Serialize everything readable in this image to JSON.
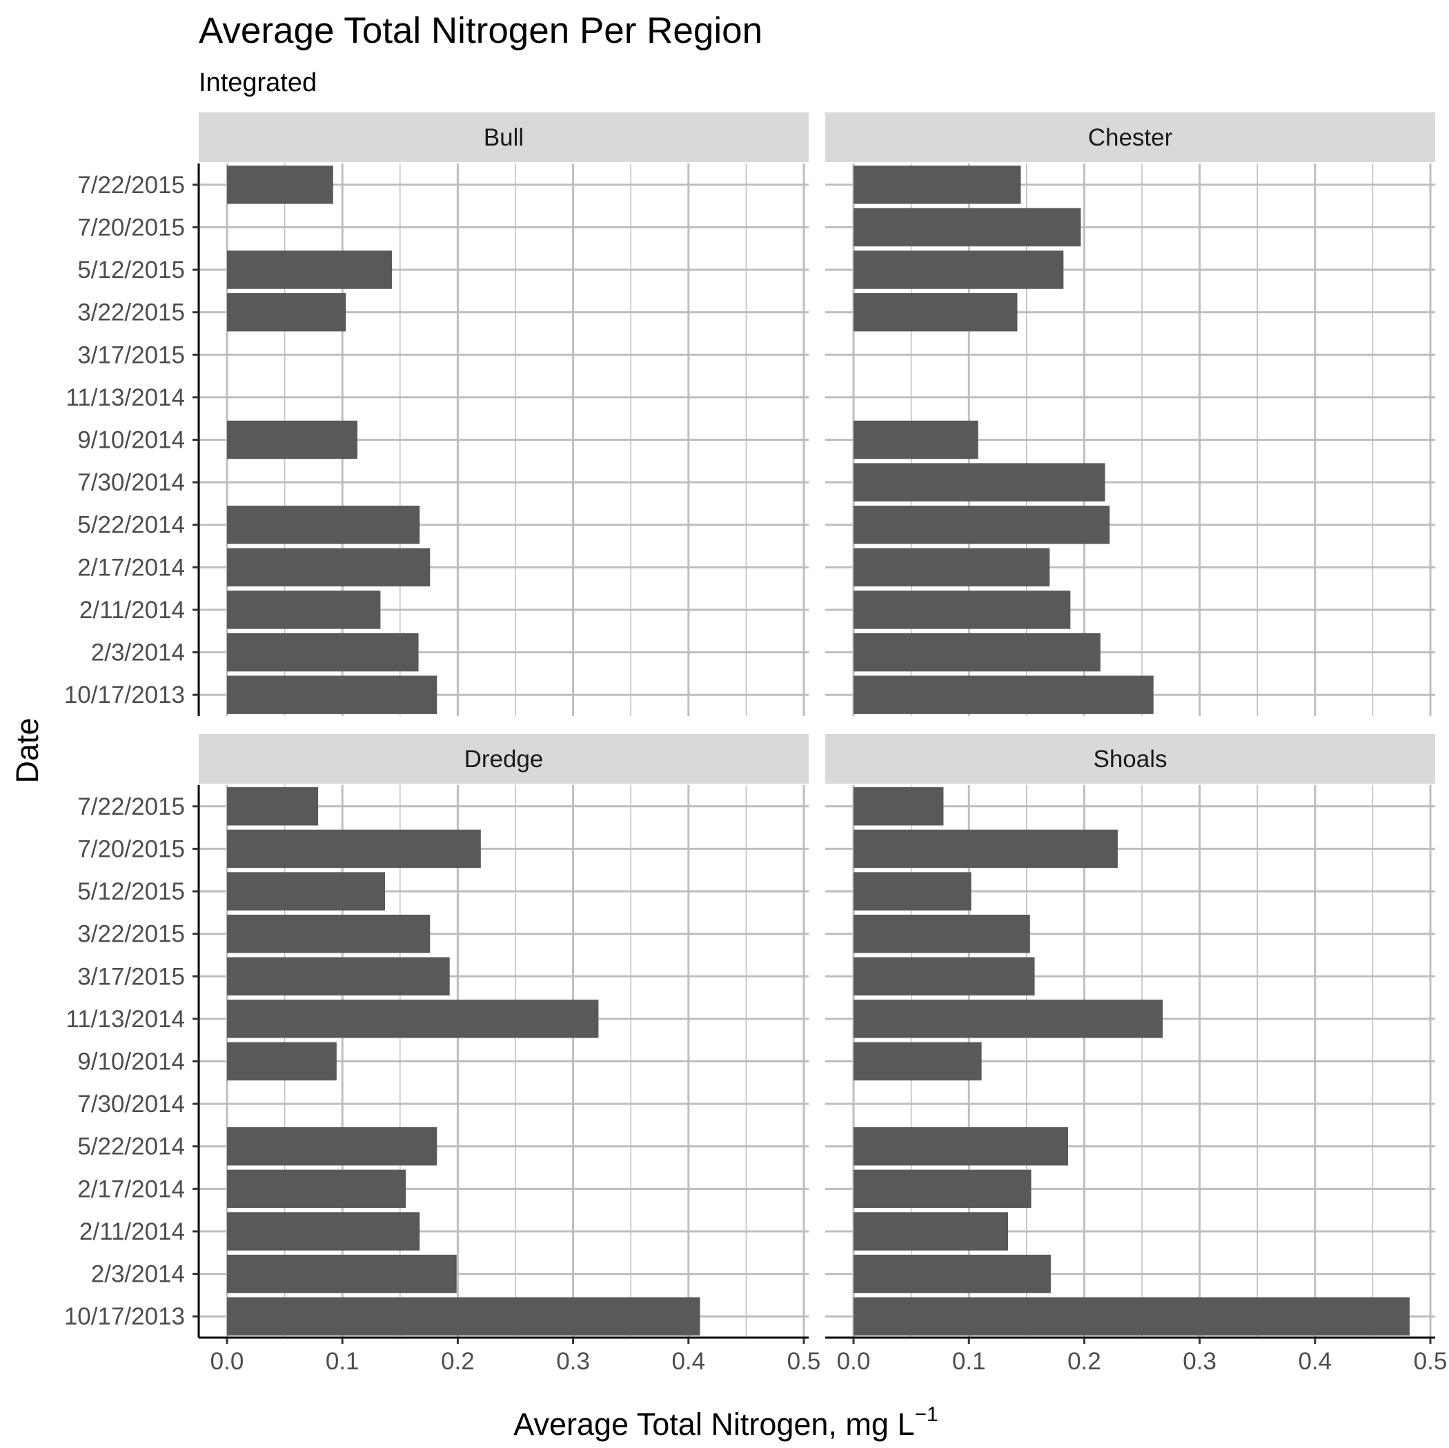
{
  "chart_data": {
    "type": "bar",
    "orientation": "horizontal",
    "title": "Average Total Nitrogen Per Region",
    "subtitle": "Integrated",
    "xlabel": "Average Total Nitrogen, mg L",
    "xlabel_superscript": "−1",
    "ylabel": "Date",
    "xlim": [
      0,
      0.5
    ],
    "x_ticks": [
      "0.0",
      "0.1",
      "0.2",
      "0.3",
      "0.4",
      "0.5"
    ],
    "grid": true,
    "bar_color": "#595959",
    "categories": [
      "10/17/2013",
      "2/3/2014",
      "2/11/2014",
      "2/17/2014",
      "5/22/2014",
      "7/30/2014",
      "9/10/2014",
      "11/13/2014",
      "3/17/2015",
      "3/22/2015",
      "5/12/2015",
      "7/20/2015",
      "7/22/2015"
    ],
    "panels": [
      {
        "name": "Bull",
        "values": [
          0.182,
          0.166,
          0.133,
          0.176,
          0.167,
          null,
          0.113,
          null,
          null,
          0.103,
          0.143,
          null,
          0.092
        ]
      },
      {
        "name": "Chester",
        "values": [
          0.26,
          0.214,
          0.188,
          0.17,
          0.222,
          0.218,
          0.108,
          null,
          null,
          0.142,
          0.182,
          0.197,
          0.145
        ]
      },
      {
        "name": "Dredge",
        "values": [
          0.41,
          0.199,
          0.167,
          0.155,
          0.182,
          null,
          0.095,
          0.322,
          0.193,
          0.176,
          0.137,
          0.22,
          0.079
        ]
      },
      {
        "name": "Shoals",
        "values": [
          0.482,
          0.171,
          0.134,
          0.154,
          0.186,
          null,
          0.111,
          0.268,
          0.157,
          0.153,
          0.102,
          0.229,
          0.078
        ]
      }
    ]
  }
}
